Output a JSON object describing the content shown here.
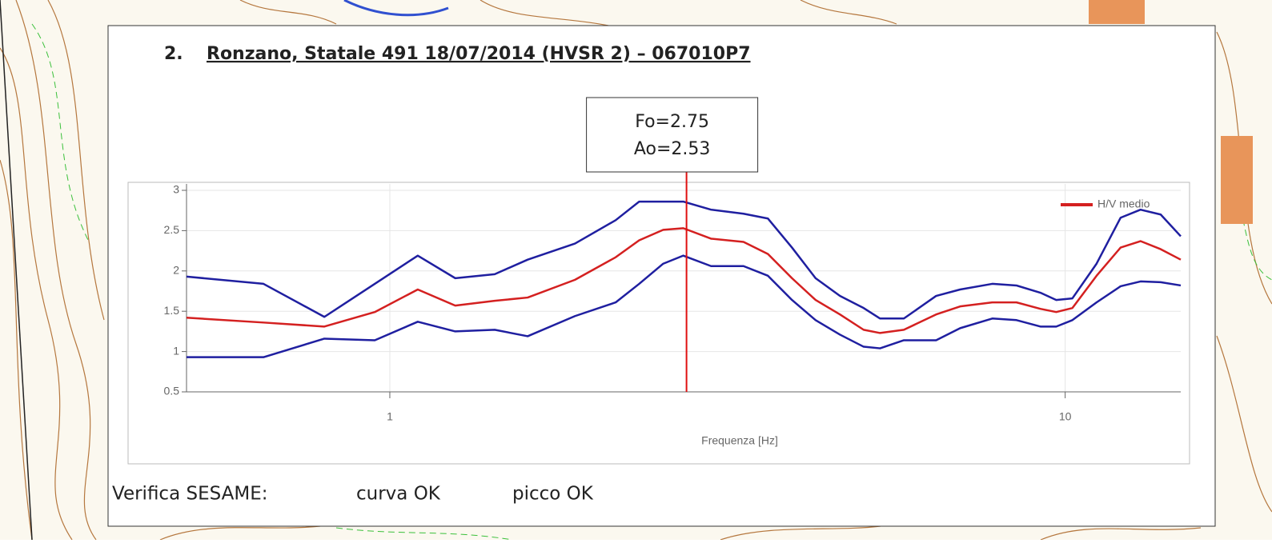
{
  "number": "2.",
  "title": "Ronzano, Statale 491 18/07/2014 (HVSR 2) – 067010P7",
  "chart_data": {
    "type": "line",
    "x": [
      0.5,
      0.65,
      0.8,
      0.95,
      1.1,
      1.25,
      1.43,
      1.6,
      1.88,
      2.16,
      2.34,
      2.54,
      2.72,
      2.99,
      3.34,
      3.63,
      3.94,
      4.27,
      4.64,
      5.03,
      5.32,
      5.77,
      6.44,
      6.99,
      7.8,
      8.47,
      9.19,
      9.7,
      10.25,
      11.13,
      12.08,
      12.93,
      13.85,
      14.83
    ],
    "series": [
      {
        "color": "#1f1fa0",
        "values": [
          1.93,
          1.84,
          1.43,
          1.84,
          2.19,
          1.91,
          1.96,
          2.14,
          2.34,
          2.63,
          2.86,
          2.86,
          2.86,
          2.76,
          2.71,
          2.65,
          2.29,
          1.91,
          1.69,
          1.54,
          1.41,
          1.41,
          1.69,
          1.77,
          1.84,
          1.82,
          1.73,
          1.64,
          1.66,
          2.09,
          2.66,
          2.76,
          2.7,
          2.43
        ]
      },
      {
        "color": "#1f1fa0",
        "values": [
          0.93,
          0.93,
          1.16,
          1.14,
          1.37,
          1.25,
          1.27,
          1.19,
          1.44,
          1.61,
          1.84,
          2.09,
          2.19,
          2.06,
          2.06,
          1.94,
          1.64,
          1.39,
          1.21,
          1.06,
          1.04,
          1.14,
          1.14,
          1.29,
          1.41,
          1.39,
          1.31,
          1.31,
          1.39,
          1.61,
          1.81,
          1.87,
          1.86,
          1.82
        ]
      },
      {
        "name": "H/V medio",
        "color": "#d42020",
        "values": [
          1.42,
          1.36,
          1.31,
          1.49,
          1.77,
          1.57,
          1.63,
          1.67,
          1.89,
          2.17,
          2.38,
          2.51,
          2.53,
          2.4,
          2.36,
          2.21,
          1.91,
          1.64,
          1.46,
          1.27,
          1.23,
          1.27,
          1.46,
          1.56,
          1.61,
          1.61,
          1.53,
          1.49,
          1.54,
          1.94,
          2.29,
          2.37,
          2.27,
          2.14
        ]
      }
    ],
    "xlim": [
      0.5,
      14.83
    ],
    "xticks": [
      1,
      10
    ],
    "xscale": "log",
    "ylim": [
      0.5,
      3
    ],
    "yticks": [
      0.5,
      1,
      1.5,
      2,
      2.5,
      3
    ],
    "xlabel": "Frequenza [Hz]",
    "grid": true,
    "legend": "upper right",
    "peak": {
      "x": 2.75,
      "y": 2.53,
      "labels": [
        "Fo=2.75",
        "Ao=2.53"
      ],
      "color": "#e01010"
    }
  },
  "footer": [
    "Verifica SESAME:",
    "curva OK",
    "picco OK"
  ]
}
